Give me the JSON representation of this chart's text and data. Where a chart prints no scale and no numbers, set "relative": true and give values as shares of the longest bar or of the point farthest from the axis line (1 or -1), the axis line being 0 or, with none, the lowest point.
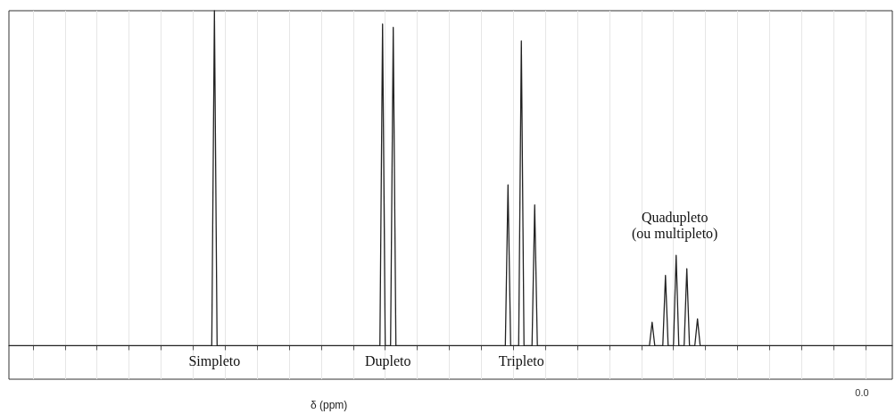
{
  "chart_data": {
    "type": "line",
    "relative": true,
    "xlabel": "δ (ppm)",
    "grid": "x",
    "color": "#222222",
    "annotations": [
      "Simpleto",
      "Dupleto",
      "Tripleto",
      "Quadupleto\n(ou multipleto)",
      "0.0"
    ],
    "categories": [
      null,
      null,
      null,
      null,
      null,
      null,
      null,
      null,
      null,
      null,
      null,
      null,
      null,
      null,
      null,
      null,
      null,
      null,
      null,
      null,
      null,
      null,
      null,
      null,
      null,
      null,
      null,
      null,
      null,
      null,
      null,
      null,
      null,
      null,
      null,
      null,
      null,
      null,
      null,
      null,
      null,
      null,
      null,
      null,
      null,
      null,
      null,
      null,
      null,
      null,
      null,
      null,
      null,
      null,
      null,
      null,
      null,
      null,
      null,
      null,
      null,
      null,
      null,
      null,
      null,
      null,
      null,
      null,
      null,
      null,
      null,
      null,
      null,
      null,
      null,
      null,
      null,
      null,
      null,
      null,
      null,
      null,
      null,
      null,
      null,
      null,
      null,
      null,
      null,
      null,
      null,
      null,
      null,
      null,
      null,
      null,
      null,
      null,
      null,
      null,
      null,
      null,
      null,
      null,
      null,
      null,
      null,
      null,
      null,
      null,
      null,
      null,
      null,
      null,
      null,
      null,
      null,
      null,
      null,
      null,
      null,
      null,
      null,
      null,
      null,
      null,
      null,
      null,
      null,
      null,
      null,
      null,
      null,
      null,
      null,
      null,
      null,
      null,
      null,
      null,
      null,
      null,
      null,
      null,
      null,
      null,
      null,
      null,
      null,
      null,
      null,
      null,
      null,
      null,
      null,
      null,
      null,
      null,
      null,
      null,
      null,
      null,
      null,
      null,
      null,
      null,
      null,
      null,
      null,
      null,
      null,
      null,
      null,
      null,
      null,
      null,
      null,
      null,
      null,
      null,
      null,
      null,
      null,
      null,
      null,
      null,
      null,
      null,
      null,
      null,
      null,
      null,
      null,
      null,
      null,
      null,
      null,
      null,
      null,
      null,
      null,
      null,
      null,
      null,
      null,
      null,
      null,
      null,
      null,
      null,
      null,
      null,
      null,
      null,
      null,
      null,
      null,
      null,
      null,
      null,
      null,
      null,
      null,
      null,
      null,
      null,
      null,
      null,
      null,
      null,
      null,
      null,
      null,
      null,
      null,
      null,
      null,
      null,
      null,
      null,
      null,
      null,
      null,
      null,
      null,
      null,
      null,
      null,
      null,
      null,
      null,
      null,
      null,
      null,
      null,
      null,
      null,
      null,
      null,
      null,
      null,
      null,
      null,
      null,
      null,
      null,
      null,
      null,
      null,
      null,
      null,
      null,
      null,
      null,
      null,
      null,
      null,
      null,
      null,
      null,
      null,
      null,
      null,
      null,
      null,
      null,
      null,
      null,
      null,
      null,
      null,
      null,
      null,
      null,
      null,
      null,
      null,
      null,
      null,
      null,
      null,
      null,
      null,
      null,
      null,
      null,
      null,
      null,
      null,
      null,
      null,
      null,
      null,
      null,
      null,
      null,
      null,
      null,
      null,
      null,
      null,
      null,
      null,
      null,
      null,
      null,
      null,
      null,
      null,
      null,
      null,
      null
    ],
    "values": [
      0,
      0,
      0,
      0,
      0,
      0,
      0,
      0,
      0,
      0,
      0,
      0,
      0,
      0,
      0,
      0,
      0,
      0,
      0,
      0,
      0,
      0,
      0,
      0,
      0,
      0,
      0,
      0,
      0,
      0,
      0,
      0,
      0,
      0,
      0,
      0,
      0,
      0,
      0,
      0,
      0,
      0,
      0,
      0,
      0,
      0,
      0,
      0,
      0,
      0,
      0,
      0,
      0,
      0,
      0,
      0,
      0,
      0,
      0,
      0,
      0,
      0,
      0,
      0,
      0,
      0,
      0,
      0,
      0,
      0,
      0,
      0,
      0,
      0,
      0,
      0,
      0,
      1,
      0,
      0,
      0,
      0,
      0,
      0,
      0,
      0,
      0,
      0,
      0,
      0,
      0,
      0,
      0,
      0,
      0,
      0,
      0,
      0,
      0,
      0,
      0,
      0,
      0,
      0,
      0,
      0,
      0,
      0,
      0,
      0,
      0,
      0,
      0,
      0,
      0,
      0,
      0,
      0,
      0,
      0,
      0,
      0,
      0,
      0,
      0,
      0,
      0,
      0,
      0,
      0,
      0,
      0,
      0,
      0,
      0,
      0,
      0,
      0,
      0,
      0,
      0.96,
      0,
      0,
      0,
      0.95,
      0,
      0,
      0,
      0,
      0,
      0,
      0,
      0,
      0,
      0,
      0,
      0,
      0,
      0,
      0,
      0,
      0,
      0,
      0,
      0,
      0,
      0,
      0,
      0,
      0,
      0,
      0,
      0,
      0,
      0,
      0,
      0,
      0,
      0,
      0,
      0,
      0,
      0,
      0,
      0,
      0,
      0,
      0.48,
      0,
      0,
      0,
      0,
      0.91,
      0,
      0,
      0,
      0,
      0.42,
      0,
      0,
      0,
      0,
      0,
      0,
      0,
      0,
      0,
      0,
      0,
      0,
      0,
      0,
      0,
      0,
      0,
      0,
      0,
      0,
      0,
      0,
      0,
      0,
      0,
      0,
      0,
      0,
      0,
      0,
      0,
      0,
      0,
      0,
      0,
      0,
      0,
      0,
      0,
      0,
      0,
      0,
      0,
      0.07,
      0,
      0,
      0,
      0,
      0.21,
      0,
      0,
      0,
      0.27,
      0,
      0,
      0,
      0.23,
      0,
      0,
      0,
      0.08,
      0,
      0,
      0,
      0,
      0,
      0,
      0,
      0,
      0,
      0,
      0,
      0,
      0,
      0,
      0,
      0,
      0,
      0,
      0,
      0,
      0,
      0,
      0,
      0,
      0,
      0,
      0,
      0,
      0,
      0,
      0,
      0,
      0,
      0,
      0,
      0,
      0,
      0,
      0,
      0,
      0,
      0,
      0,
      0,
      0,
      0,
      0,
      0,
      0,
      0,
      0,
      0,
      0,
      0,
      0,
      0,
      0,
      0,
      0,
      0,
      0,
      0,
      0,
      0,
      0,
      0,
      0,
      0,
      0,
      0,
      0,
      0,
      0
    ]
  }
}
